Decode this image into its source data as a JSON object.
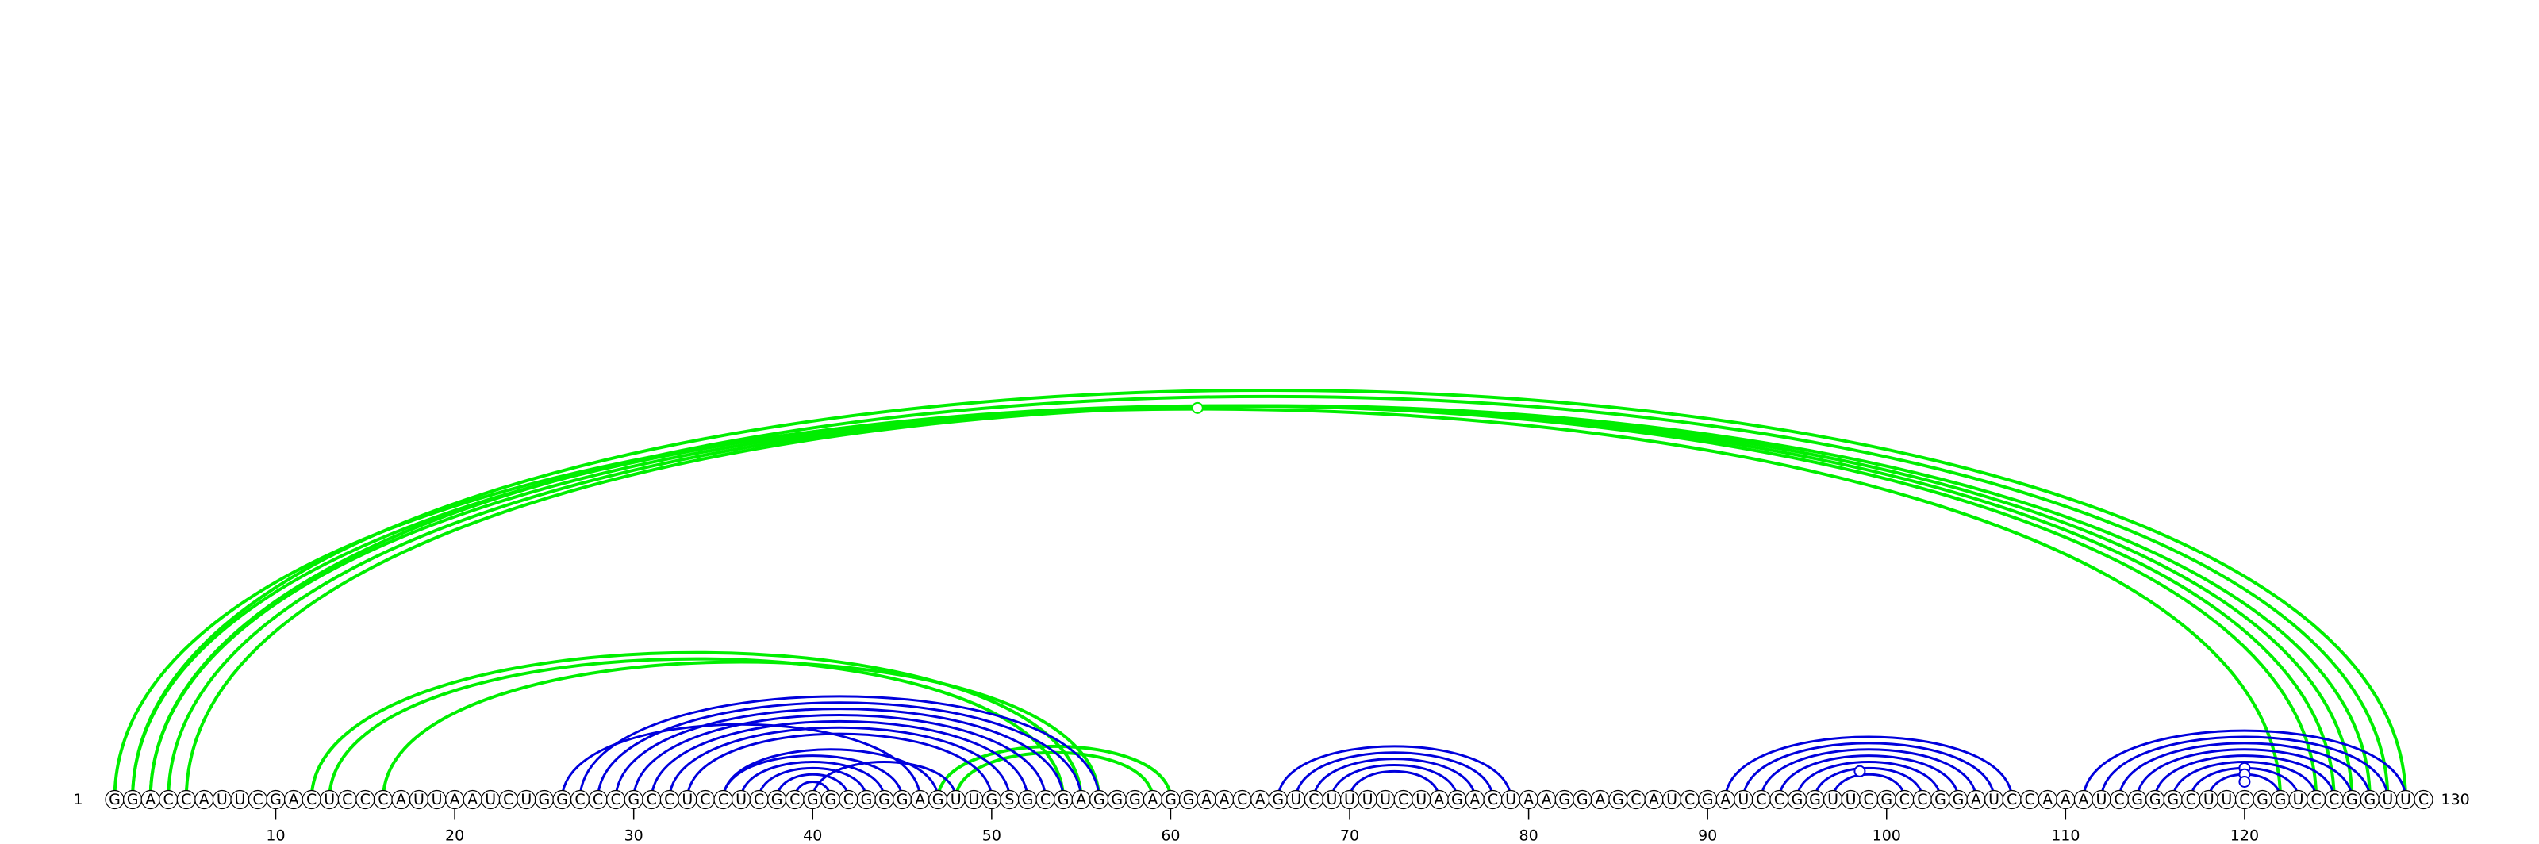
{
  "sequence": "GGACCAUUCGACUCCCAUUAAUCUGGCCCGCCUCCUCGCGGCGGGAGUUGSGCGAGGGAGGAACAGUCUUUUCUAGACUAAGGAGCAUCGAUCCGGUUCGCCGGAUCCAAAUCGGGCUUCGGUCCGGUUC",
  "start_label": "1",
  "end_label": "130",
  "ticks": [
    "10",
    "20",
    "30",
    "40",
    "50",
    "60",
    "70",
    "80",
    "90",
    "100",
    "110",
    "120"
  ],
  "colors": {
    "structure_a": "#00ee00",
    "structure_b": "#0000dd"
  },
  "chart_data": {
    "type": "arc-diagram",
    "length": 130,
    "structures": [
      {
        "color": "#00ee00",
        "pairs": [
          [
            1,
            122
          ],
          [
            2,
            124
          ],
          [
            3,
            125
          ],
          [
            4,
            126
          ],
          [
            5,
            127
          ],
          [
            12,
            55
          ],
          [
            13,
            54
          ],
          [
            16,
            56
          ],
          [
            47,
            60
          ],
          [
            48,
            59
          ],
          [
            2,
            129
          ],
          [
            3,
            128
          ]
        ]
      },
      {
        "color": "#0000dd",
        "pairs": [
          [
            27,
            56
          ],
          [
            28,
            55
          ],
          [
            29,
            54
          ],
          [
            30,
            53
          ],
          [
            31,
            52
          ],
          [
            32,
            51
          ],
          [
            33,
            50
          ],
          [
            35,
            45
          ],
          [
            36,
            44
          ],
          [
            37,
            43
          ],
          [
            38,
            42
          ],
          [
            39,
            41
          ],
          [
            40,
            48
          ],
          [
            26,
            46
          ],
          [
            35,
            47
          ],
          [
            66,
            79
          ],
          [
            67,
            78
          ],
          [
            68,
            77
          ],
          [
            69,
            76
          ],
          [
            70,
            75
          ],
          [
            91,
            107
          ],
          [
            92,
            106
          ],
          [
            93,
            105
          ],
          [
            94,
            104
          ],
          [
            95,
            103
          ],
          [
            96,
            102
          ],
          [
            97,
            101
          ],
          [
            111,
            129
          ],
          [
            112,
            128
          ],
          [
            113,
            127
          ],
          [
            114,
            126
          ],
          [
            115,
            125
          ],
          [
            116,
            124
          ],
          [
            117,
            123
          ],
          [
            118,
            122
          ]
        ]
      }
    ],
    "marked_pairs": [
      [
        1,
        122
      ],
      [
        96,
        101
      ],
      [
        117,
        123
      ],
      [
        118,
        122
      ],
      [
        119,
        121
      ]
    ]
  }
}
